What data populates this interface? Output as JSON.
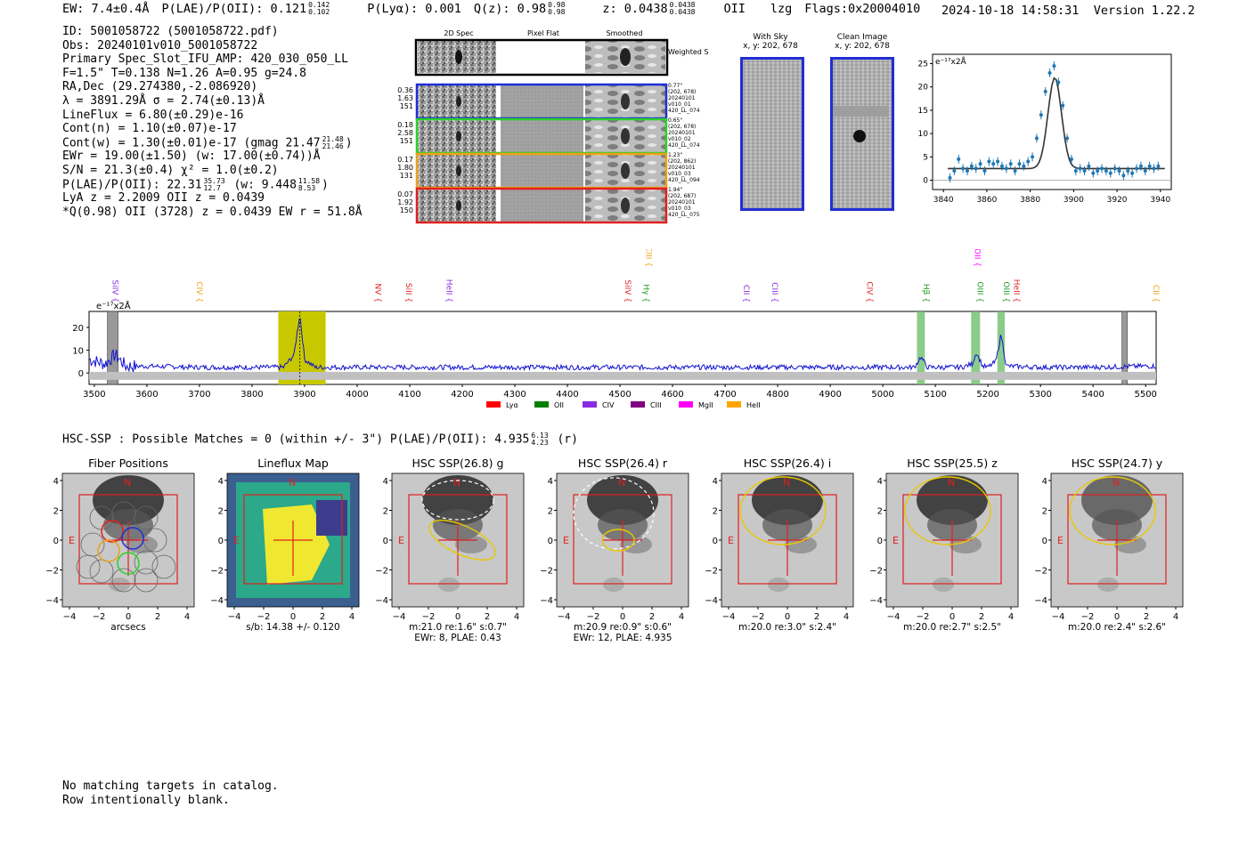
{
  "header": {
    "ew": "EW: 7.4±0.4Å",
    "plae_label": "P(LAE)/P(OII): 0.121",
    "plae_sup": "0.142",
    "plae_sub": "0.102",
    "plya": "P(Lyα): 0.001",
    "qz_label": "Q(z): 0.98",
    "qz_sup": "0.98",
    "qz_sub": "0.98",
    "z_label": "z: 0.0438",
    "z_sup": "0.0438",
    "z_sub": "0.0438",
    "z_line": "OII",
    "tag": "lzg",
    "flags": "Flags:0x20004010",
    "datetime": "2024-10-18 14:58:31",
    "version": "Version 1.22.2"
  },
  "info": {
    "id": "ID: 5001058722 (5001058722.pdf)",
    "obs": "Obs: 20240101v010_5001058722",
    "slot": "Primary Spec_Slot_IFU_AMP: 420_030_050_LL",
    "params": "F=1.5\"  T=0.138  N=1.26  A=0.95  g=24.8",
    "radec": "RA,Dec (29.274380,-2.086920)",
    "lambda": "λ = 3891.29Å   σ = 2.74(±0.13)Å",
    "lineflux": "LineFlux = 6.80(±0.29)e-16",
    "contn": "Cont(n) = 1.10(±0.07)e-17",
    "contw": "Cont(w) = 1.30(±0.01)e-17 (gmag 21.47",
    "contw_sup": "21.48",
    "contw_sub": "21.46",
    "ewr": "EWr = 19.00(±1.50) (w: 17.00(±0.74))Å",
    "sn": "S/N = 21.3(±0.4)  χ² = 1.0(±0.2)",
    "plae": "P(LAE)/P(OII): 22.31",
    "plae_sup": "35.73",
    "plae_sub": "12.7",
    "plae_w": "(w: 9.448",
    "plae_w_sup": "11.58",
    "plae_w_sub": "8.53",
    "lya_z": "LyA z = 2.2009  OII z = 0.0439",
    "q_line": "*Q(0.98) OII (3728) z = 0.0439  EW r = 51.8Å"
  },
  "fiber_panels": {
    "headers": [
      "2D Spec",
      "Pixel Flat",
      "Smoothed"
    ],
    "sum_label": "Weighted Sum",
    "rows": [
      {
        "weights": [
          "0.36",
          "1.63",
          "151"
        ],
        "color": "#1f2ed6",
        "notes": [
          "0.77\"",
          "(202, 678)",
          "20240101",
          "v010_01",
          "420_LL_074"
        ]
      },
      {
        "weights": [
          "0.18",
          "2.58",
          "151"
        ],
        "color": "#2bd12b",
        "notes": [
          "0.65\"",
          "(202, 678)",
          "20240101",
          "v010_02",
          "420_LL_074"
        ]
      },
      {
        "weights": [
          "0.17",
          "1.80",
          "131"
        ],
        "color": "#f0a018",
        "notes": [
          "1.23\"",
          "(202, 862)",
          "20240101",
          "v010_03",
          "420_LL_094"
        ]
      },
      {
        "weights": [
          "0.07",
          "1.92",
          "150"
        ],
        "color": "#e02020",
        "notes": [
          "1.94\"",
          "(202, 687)",
          "20240101",
          "v010_03",
          "420_LL_075"
        ]
      }
    ]
  },
  "sky_panels": [
    {
      "title": "With Sky",
      "coords": "x, y: 202, 678"
    },
    {
      "title": "Clean Image",
      "coords": "x, y: 202, 678"
    }
  ],
  "zoom_chart": {
    "ylabel": "e⁻¹⁷x2Å",
    "xticks": [
      "3840",
      "3860",
      "3880",
      "3900",
      "3920",
      "3940"
    ],
    "yticks": [
      "0",
      "5",
      "10",
      "15",
      "20",
      "25"
    ]
  },
  "chart_data": {
    "type": "line",
    "title": "",
    "ylabel": "e⁻¹⁷x2Å",
    "xlim": [
      3490,
      5520
    ],
    "ylim": [
      -5,
      27
    ],
    "xticks": [
      3500,
      3600,
      3700,
      3800,
      3900,
      4000,
      4100,
      4200,
      4300,
      4400,
      4500,
      4600,
      4700,
      4800,
      4900,
      5000,
      5100,
      5200,
      5300,
      5400,
      5500
    ],
    "yticks": [
      0,
      10,
      20
    ],
    "series": [
      {
        "name": "spectrum",
        "x": [
          3490,
          3520,
          3540,
          3560,
          3600,
          3700,
          3800,
          3860,
          3880,
          3891,
          3900,
          3920,
          3950,
          4000,
          4200,
          4400,
          4600,
          4800,
          5000,
          5060,
          5072,
          5085,
          5100,
          5150,
          5170,
          5178,
          5190,
          5200,
          5215,
          5225,
          5235,
          5300,
          5400,
          5500,
          5520
        ],
        "y": [
          6,
          4,
          8,
          3,
          3,
          2.5,
          2.5,
          2.5,
          8,
          26,
          6,
          2.5,
          2.5,
          2.5,
          2.5,
          2.5,
          2.5,
          2.5,
          2.5,
          2.5,
          7,
          2.5,
          2.5,
          2.5,
          4,
          9,
          3,
          2.5,
          5,
          17,
          3,
          2.5,
          2.5,
          3,
          3
        ]
      }
    ],
    "highlight_region": [
      3850,
      3940
    ],
    "lines": [
      {
        "label": "SiIV",
        "x": 3530,
        "color": "#8a2be2",
        "row": 0
      },
      {
        "label": "CIV",
        "x": 3690,
        "color": "#f0a018",
        "row": 0
      },
      {
        "label": "NV",
        "x": 4030,
        "color": "#e02020",
        "row": 0
      },
      {
        "label": "SiII",
        "x": 4088,
        "color": "#e02020",
        "row": 0
      },
      {
        "label": "HeII",
        "x": 4165,
        "color": "#8a2be2",
        "row": 0
      },
      {
        "label": "SiIV",
        "x": 4505,
        "color": "#e02020",
        "row": 0
      },
      {
        "label": "CIII",
        "x": 4545,
        "color": "#f0a018",
        "row": 1
      },
      {
        "label": "Hγ",
        "x": 4540,
        "color": "#1a9a1a",
        "row": 0
      },
      {
        "label": "CII",
        "x": 4730,
        "color": "#8a2be2",
        "row": 0
      },
      {
        "label": "CIII",
        "x": 4785,
        "color": "#8a2be2",
        "row": 0
      },
      {
        "label": "CIV",
        "x": 4965,
        "color": "#e02020",
        "row": 0
      },
      {
        "label": "Hβ",
        "x": 5073,
        "color": "#1a9a1a",
        "row": 0
      },
      {
        "label": "OII",
        "x": 5170,
        "color": "#ff00ff",
        "row": 1
      },
      {
        "label": "OIII",
        "x": 5175,
        "color": "#1a9a1a",
        "row": 0
      },
      {
        "label": "OIII",
        "x": 5225,
        "color": "#1a9a1a",
        "row": 0
      },
      {
        "label": "HeII",
        "x": 5245,
        "color": "#e02020",
        "row": 0
      },
      {
        "label": "CII",
        "x": 5510,
        "color": "#f0a018",
        "row": 0
      }
    ],
    "legend": [
      {
        "label": "Lyα",
        "color": "#ff0000"
      },
      {
        "label": "OII",
        "color": "#008000"
      },
      {
        "label": "CIV",
        "color": "#8a2be2"
      },
      {
        "label": "CIII",
        "color": "#800080"
      },
      {
        "label": "MgII",
        "color": "#ff00ff"
      },
      {
        "label": "HeII",
        "color": "#ffa500"
      }
    ]
  },
  "hsc_line": "HSC-SSP : Possible Matches = 0 (within +/- 3\")  P(LAE)/P(OII): 4.935",
  "hsc_line_sup": "6.13",
  "hsc_line_sub": "4.23",
  "hsc_line_end": "(r)",
  "cutouts": [
    {
      "title": "Fiber Positions",
      "cap1": "arcsecs",
      "cap2": ""
    },
    {
      "title": "Lineflux Map",
      "cap1": "s/b: 14.38 +/- 0.120",
      "cap2": ""
    },
    {
      "title": "HSC SSP(26.8) g",
      "cap1": "m:21.0  re:1.6\"  s:0.7\"",
      "cap2": "EWr: 8, PLAE: 0.43"
    },
    {
      "title": "HSC SSP(26.4) r",
      "cap1": "m:20.9  re:0.9\"  s:0.6\"",
      "cap2": "EWr: 12, PLAE: 4.935"
    },
    {
      "title": "HSC SSP(26.4) i",
      "cap1": "m:20.0  re:3.0\"  s:2.4\"",
      "cap2": ""
    },
    {
      "title": "HSC SSP(25.5) z",
      "cap1": "m:20.0  re:2.7\"  s:2.5\"",
      "cap2": ""
    },
    {
      "title": "HSC SSP(24.7) y",
      "cap1": "m:20.0  re:2.4\"  s:2.6\"",
      "cap2": ""
    }
  ],
  "cutout_axis": {
    "ticks": [
      "−4",
      "−2",
      "0",
      "2",
      "4"
    ],
    "north": "N",
    "east": "E"
  },
  "footer": [
    "No matching targets in catalog.",
    "Row intentionally blank."
  ]
}
